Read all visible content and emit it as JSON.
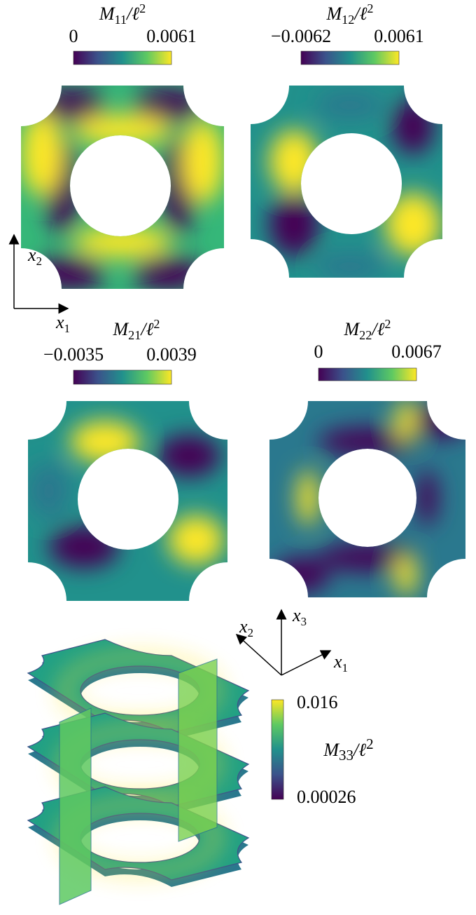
{
  "panels": [
    {
      "title": {
        "main": "M",
        "sub": "11",
        "rest": "/ℓ",
        "sup": "2"
      },
      "colorbar": {
        "min": "0",
        "max": "0.0061"
      }
    },
    {
      "title": {
        "main": "M",
        "sub": "12",
        "rest": "/ℓ",
        "sup": "2"
      },
      "colorbar": {
        "min": "−0.0062",
        "max": "0.0061"
      }
    },
    {
      "title": {
        "main": "M",
        "sub": "21",
        "rest": "/ℓ",
        "sup": "2"
      },
      "colorbar": {
        "min": "−0.0035",
        "max": "0.0039"
      }
    },
    {
      "title": {
        "main": "M",
        "sub": "22",
        "rest": "/ℓ",
        "sup": "2"
      },
      "colorbar": {
        "min": "0",
        "max": "0.0067"
      }
    }
  ],
  "axes_2d": {
    "x1": {
      "main": "x",
      "sub": "1"
    },
    "x2": {
      "main": "x",
      "sub": "2"
    }
  },
  "panel_3d": {
    "axes": {
      "x1": {
        "main": "x",
        "sub": "1"
      },
      "x2": {
        "main": "x",
        "sub": "2"
      },
      "x3": {
        "main": "x",
        "sub": "3"
      }
    },
    "title": {
      "main": "M",
      "sub": "33",
      "rest": "/ℓ",
      "sup": "2"
    },
    "colorbar": {
      "min": "0.00026",
      "max": "0.016"
    }
  }
}
